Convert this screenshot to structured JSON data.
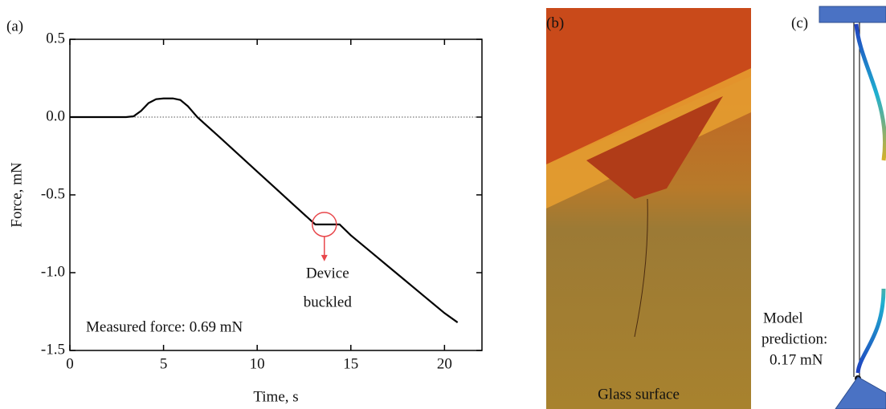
{
  "chart_data": {
    "type": "line",
    "panel_label": "(a)",
    "xlabel": "Time, s",
    "ylabel": "Force, mN",
    "x": [
      0,
      3,
      3.4,
      3.8,
      4.2,
      4.6,
      5,
      5.5,
      5.9,
      6.3,
      6.8,
      8,
      9,
      10,
      11,
      12,
      13.1,
      13.5,
      14,
      14.4,
      15,
      16,
      17,
      18,
      19,
      20,
      20.7
    ],
    "series": [
      {
        "color": "#000000",
        "values": [
          0,
          0,
          0.005,
          0.04,
          0.09,
          0.115,
          0.12,
          0.12,
          0.11,
          0.07,
          0.0,
          -0.13,
          -0.24,
          -0.35,
          -0.46,
          -0.57,
          -0.69,
          -0.69,
          -0.69,
          -0.69,
          -0.76,
          -0.86,
          -0.96,
          -1.06,
          -1.16,
          -1.26,
          -1.32
        ]
      }
    ],
    "xlim": [
      0,
      22
    ],
    "ylim": [
      -1.5,
      0.5
    ],
    "xticks": [
      0,
      5,
      10,
      15,
      20
    ],
    "yticks": [
      -1.5,
      {
        "value": -1,
        "label": "-1.0"
      },
      -0.5,
      {
        "value": 0,
        "label": "0.0"
      },
      0.5
    ],
    "zero_line": true,
    "annotations": [
      "Device",
      "buckled",
      "Measured force: 0.69 mN"
    ],
    "annotation_color": "#e8474b"
  },
  "photo": {
    "panel_label": "(b)",
    "caption": "Glass surface"
  },
  "model": {
    "panel_label": "(c)",
    "text": [
      "Model",
      "prediction:",
      "0.17 mN"
    ]
  }
}
